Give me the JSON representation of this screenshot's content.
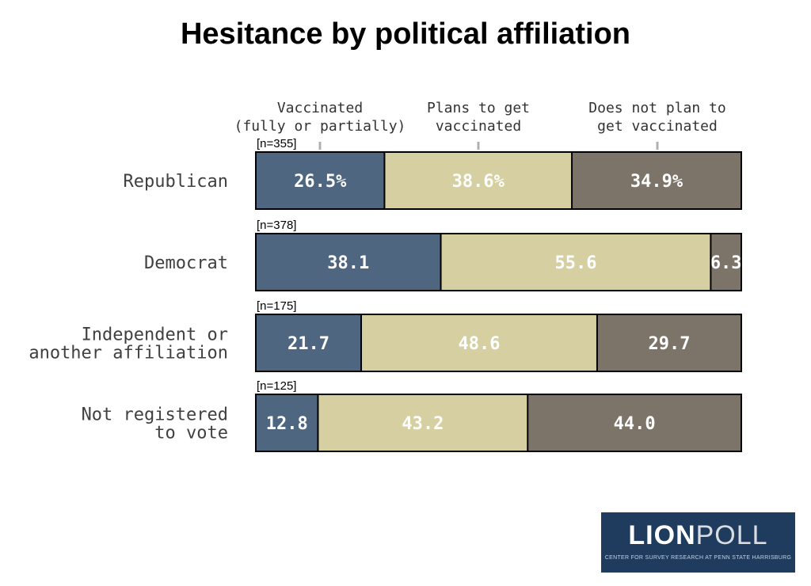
{
  "chart_data": {
    "type": "bar",
    "orientation": "horizontal",
    "stacked": true,
    "title": "Hesitance by political affiliation",
    "column_headers": [
      [
        "Vaccinated",
        "(fully or partially)"
      ],
      [
        "Plans to get",
        "vaccinated"
      ],
      [
        "Does not plan to",
        "get vaccinated"
      ]
    ],
    "categories": [
      [
        "Republican"
      ],
      [
        "Democrat"
      ],
      [
        "Independent or",
        "another affiliation"
      ],
      [
        "Not registered",
        "to vote"
      ]
    ],
    "sample_sizes": [
      "[n=355]",
      "[n=378]",
      "[n=175]",
      "[n=125]"
    ],
    "series": [
      {
        "name": "Vaccinated (fully or partially)",
        "color": "#4f6680",
        "values": [
          26.5,
          38.1,
          21.7,
          12.8
        ]
      },
      {
        "name": "Plans to get vaccinated",
        "color": "#d6cfa2",
        "values": [
          38.6,
          55.6,
          48.6,
          43.2
        ]
      },
      {
        "name": "Does not plan to get vaccinated",
        "color": "#7d7469",
        "values": [
          34.9,
          6.3,
          29.7,
          44.0
        ]
      }
    ],
    "data_labels": [
      [
        "26.5%",
        "38.6%",
        "34.9%"
      ],
      [
        "38.1",
        "55.6",
        "6.3"
      ],
      [
        "21.7",
        "48.6",
        "29.7"
      ],
      [
        "12.8",
        "43.2",
        "44.0"
      ]
    ],
    "xlim": [
      0,
      100
    ],
    "grid": false,
    "legend": "column headers above bars"
  },
  "logo": {
    "lion": "LION",
    "poll": "POLL",
    "tagline": "CENTER FOR SURVEY RESEARCH AT PENN STATE HARRISBURG"
  }
}
